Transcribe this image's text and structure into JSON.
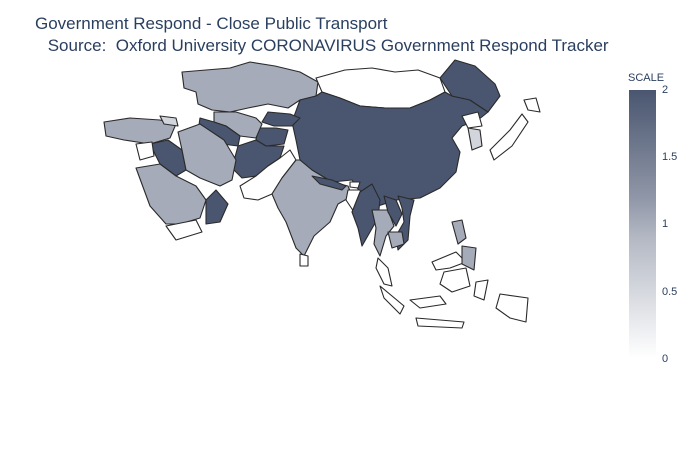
{
  "title": {
    "line1": "Government Respond - Close Public Transport",
    "line2": " Source:  Oxford University CORONAVIRUS Government Respond Tracker"
  },
  "colorscale": {
    "title": "SCALE",
    "min": 0,
    "max": 2,
    "low_color": "#ffffff",
    "mid_color": "#a5abb8",
    "high_color": "#4a5670",
    "ticks": [
      "2",
      "1.5",
      "1",
      "0.5",
      "0"
    ]
  },
  "regions": [
    {
      "name": "Kazakhstan",
      "value": 1
    },
    {
      "name": "Mongolia",
      "value": null
    },
    {
      "name": "China",
      "value": 2
    },
    {
      "name": "Russia (east fringe)",
      "value": 2
    },
    {
      "name": "Kyrgyzstan",
      "value": 2
    },
    {
      "name": "Tajikistan",
      "value": 2
    },
    {
      "name": "Uzbekistan",
      "value": 1
    },
    {
      "name": "Turkmenistan",
      "value": 2
    },
    {
      "name": "Afghanistan",
      "value": 2
    },
    {
      "name": "Pakistan",
      "value": null
    },
    {
      "name": "India",
      "value": 1
    },
    {
      "name": "Nepal",
      "value": 2
    },
    {
      "name": "Bhutan",
      "value": null
    },
    {
      "name": "Bangladesh",
      "value": null
    },
    {
      "name": "Myanmar",
      "value": 2
    },
    {
      "name": "Thailand",
      "value": 1
    },
    {
      "name": "Laos",
      "value": 2
    },
    {
      "name": "Vietnam",
      "value": 2
    },
    {
      "name": "Cambodia",
      "value": 1
    },
    {
      "name": "Malaysia",
      "value": null
    },
    {
      "name": "Indonesia",
      "value": null
    },
    {
      "name": "Philippines",
      "value": 1
    },
    {
      "name": "South Korea",
      "value": 0.5
    },
    {
      "name": "North Korea",
      "value": null
    },
    {
      "name": "Japan",
      "value": null
    },
    {
      "name": "Turkey",
      "value": 1
    },
    {
      "name": "Georgia",
      "value": 0.5
    },
    {
      "name": "Iraq",
      "value": 2
    },
    {
      "name": "Iran",
      "value": 1
    },
    {
      "name": "Syria",
      "value": null
    },
    {
      "name": "Saudi Arabia",
      "value": 1
    },
    {
      "name": "Yemen",
      "value": null
    },
    {
      "name": "Oman",
      "value": 2
    },
    {
      "name": "Sri Lanka",
      "value": null
    }
  ]
}
